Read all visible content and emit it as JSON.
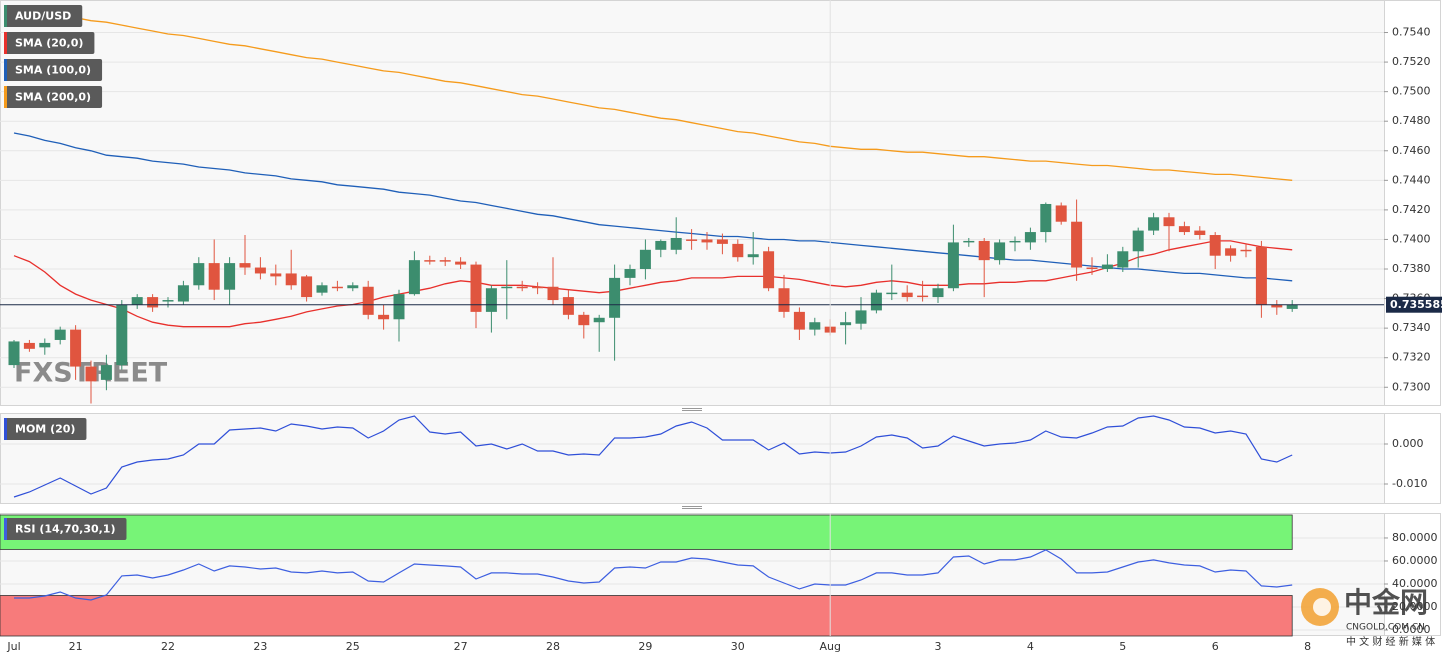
{
  "chart_data": [
    {
      "type": "candlestick",
      "title": "AUD/USD",
      "open": [
        0.7315,
        0.733,
        0.7327,
        0.7332,
        0.7339,
        0.7314,
        0.7305,
        0.7315,
        0.7356,
        0.7361,
        0.7358,
        0.7358,
        0.7369,
        0.7384,
        0.7366,
        0.7384,
        0.7381,
        0.7377,
        0.7377,
        0.7375,
        0.7364,
        0.7368,
        0.7367,
        0.7368,
        0.7349,
        0.7346,
        0.7363,
        0.7386,
        0.7386,
        0.7385,
        0.7383,
        0.7351,
        0.7367,
        0.7368,
        0.7368,
        0.7368,
        0.7361,
        0.7349,
        0.7344,
        0.7347,
        0.7374,
        0.738,
        0.7393,
        0.7393,
        0.74,
        0.74,
        0.74,
        0.7397,
        0.7388,
        0.7392,
        0.7367,
        0.7351,
        0.7339,
        0.7341,
        0.7342,
        0.7343,
        0.7352,
        0.7363,
        0.7364,
        0.7362,
        0.7361,
        0.7367,
        0.7398,
        0.7399,
        0.7386,
        0.7398,
        0.7398,
        0.7405,
        0.7423,
        0.7412,
        0.7381,
        0.738,
        0.7381,
        0.7392,
        0.7406,
        0.7415,
        0.7409,
        0.7406,
        0.7403,
        0.7394,
        0.7393,
        0.7395,
        0.7356,
        0.7353,
        null
      ],
      "high": [
        0.7332,
        0.7332,
        0.7333,
        0.7341,
        0.7342,
        0.7318,
        0.7322,
        0.7359,
        0.7363,
        0.7363,
        0.7361,
        0.7372,
        0.7388,
        0.74,
        0.7388,
        0.7403,
        0.7388,
        0.7383,
        0.7393,
        0.7376,
        0.7371,
        0.7372,
        0.7371,
        0.7372,
        0.7356,
        0.7366,
        0.7392,
        0.7389,
        0.7388,
        0.7388,
        0.7385,
        0.7369,
        0.7386,
        0.7372,
        0.7371,
        0.7388,
        0.7366,
        0.7351,
        0.7349,
        0.7383,
        0.7383,
        0.74,
        0.74,
        0.7415,
        0.7407,
        0.7405,
        0.7404,
        0.74,
        0.7405,
        0.7395,
        0.7376,
        0.7354,
        0.7347,
        0.7346,
        0.7351,
        0.7361,
        0.7366,
        0.7383,
        0.7369,
        0.7372,
        0.737,
        0.741,
        0.7401,
        0.7401,
        0.74,
        0.7402,
        0.7408,
        0.7425,
        0.7425,
        0.7427,
        0.7388,
        0.739,
        0.7395,
        0.7408,
        0.7418,
        0.7418,
        0.7412,
        0.7409,
        0.7405,
        0.7396,
        0.7397,
        0.7399,
        0.7359,
        0.7359,
        null
      ],
      "low": [
        0.7313,
        0.7324,
        0.7322,
        0.7329,
        0.7305,
        0.7289,
        0.7298,
        0.7312,
        0.7353,
        0.7351,
        0.7354,
        0.7356,
        0.7366,
        0.7359,
        0.7356,
        0.7376,
        0.7373,
        0.7369,
        0.7366,
        0.7358,
        0.7362,
        0.7365,
        0.7365,
        0.7346,
        0.7339,
        0.7331,
        0.7362,
        0.7383,
        0.7382,
        0.738,
        0.734,
        0.7337,
        0.7346,
        0.7365,
        0.7363,
        0.7356,
        0.7346,
        0.7333,
        0.7324,
        0.7318,
        0.7369,
        0.7373,
        0.7388,
        0.739,
        0.7393,
        0.7393,
        0.739,
        0.7385,
        0.7383,
        0.7365,
        0.7347,
        0.7332,
        0.7335,
        0.7335,
        0.7329,
        0.7339,
        0.735,
        0.7359,
        0.7358,
        0.7358,
        0.7357,
        0.7365,
        0.7395,
        0.7361,
        0.7383,
        0.7392,
        0.7393,
        0.7398,
        0.741,
        0.7372,
        0.7376,
        0.7378,
        0.7378,
        0.7381,
        0.7403,
        0.7392,
        0.7403,
        0.74,
        0.738,
        0.7385,
        0.7388,
        0.7347,
        0.7349,
        0.7351,
        null
      ],
      "close": [
        0.7331,
        0.7326,
        0.733,
        0.7339,
        0.7314,
        0.7304,
        0.7315,
        0.7356,
        0.7361,
        0.7354,
        0.7359,
        0.7369,
        0.7384,
        0.7366,
        0.7384,
        0.7381,
        0.7377,
        0.7375,
        0.7369,
        0.7361,
        0.7369,
        0.7367,
        0.7369,
        0.7349,
        0.7346,
        0.7363,
        0.7386,
        0.7385,
        0.7385,
        0.7383,
        0.7351,
        0.7367,
        0.7368,
        0.7367,
        0.7367,
        0.7359,
        0.7349,
        0.7342,
        0.7347,
        0.7374,
        0.738,
        0.7393,
        0.7399,
        0.7401,
        0.7399,
        0.7398,
        0.7397,
        0.7388,
        0.739,
        0.7367,
        0.7351,
        0.7339,
        0.7344,
        0.7337,
        0.7344,
        0.7352,
        0.7364,
        0.7364,
        0.7361,
        0.7361,
        0.7367,
        0.7398,
        0.7399,
        0.7386,
        0.7398,
        0.7399,
        0.7405,
        0.7424,
        0.7412,
        0.7381,
        0.738,
        0.7383,
        0.7392,
        0.7406,
        0.7415,
        0.7409,
        0.7405,
        0.7403,
        0.7389,
        0.7389,
        0.7392,
        0.7356,
        0.7354,
        0.735585,
        null
      ],
      "up_color": "#3c8d6e",
      "down_color": "#e0553f",
      "series": [
        {
          "name": "SMA (20,0)",
          "color": "#e8302c",
          "values": [
            0.7389,
            0.7385,
            0.7378,
            0.7369,
            0.7363,
            0.7359,
            0.7356,
            0.7353,
            0.7348,
            0.7344,
            0.7342,
            0.7341,
            0.7341,
            0.7341,
            0.7341,
            0.7343,
            0.7344,
            0.7346,
            0.7348,
            0.7351,
            0.7353,
            0.7355,
            0.7356,
            0.7358,
            0.7361,
            0.7363,
            0.7365,
            0.7367,
            0.737,
            0.7372,
            0.7371,
            0.7369,
            0.7369,
            0.7369,
            0.7368,
            0.7367,
            0.7366,
            0.7365,
            0.7364,
            0.7365,
            0.7367,
            0.7369,
            0.7371,
            0.7372,
            0.7374,
            0.7374,
            0.7374,
            0.7375,
            0.7375,
            0.7375,
            0.7374,
            0.7373,
            0.7371,
            0.7369,
            0.7368,
            0.7369,
            0.7371,
            0.7372,
            0.7371,
            0.7369,
            0.7369,
            0.7369,
            0.737,
            0.737,
            0.7371,
            0.7371,
            0.7372,
            0.7372,
            0.7374,
            0.7376,
            0.7378,
            0.7381,
            0.7384,
            0.7388,
            0.739,
            0.7393,
            0.7395,
            0.7397,
            0.7399,
            0.7399,
            0.7397,
            0.7395,
            0.7394,
            0.7393,
            null
          ]
        },
        {
          "name": "SMA (100,0)",
          "color": "#1f5fb8",
          "values": [
            0.7472,
            0.747,
            0.7467,
            0.7465,
            0.7462,
            0.746,
            0.7457,
            0.7456,
            0.7455,
            0.7453,
            0.7452,
            0.7451,
            0.7449,
            0.7448,
            0.7447,
            0.7445,
            0.7444,
            0.7443,
            0.7441,
            0.744,
            0.7439,
            0.7437,
            0.7436,
            0.7435,
            0.7434,
            0.7432,
            0.7431,
            0.743,
            0.7428,
            0.7426,
            0.7425,
            0.7423,
            0.7421,
            0.7419,
            0.7417,
            0.7416,
            0.7414,
            0.7412,
            0.741,
            0.7409,
            0.7408,
            0.7407,
            0.7406,
            0.7405,
            0.7404,
            0.7403,
            0.7402,
            0.7402,
            0.7401,
            0.74,
            0.74,
            0.7399,
            0.7399,
            0.7398,
            0.7397,
            0.7396,
            0.7395,
            0.7394,
            0.7393,
            0.7392,
            0.7391,
            0.739,
            0.7389,
            0.7388,
            0.7387,
            0.7386,
            0.7386,
            0.7385,
            0.7384,
            0.7383,
            0.7382,
            0.7381,
            0.738,
            0.738,
            0.7379,
            0.7378,
            0.7377,
            0.7377,
            0.7376,
            0.7375,
            0.7374,
            0.7374,
            0.7373,
            0.7372,
            null
          ]
        },
        {
          "name": "SMA (200,0)",
          "color": "#f59b1c",
          "values": [
            0.7557,
            0.7556,
            0.7554,
            0.7552,
            0.755,
            0.7548,
            0.7547,
            0.7545,
            0.7543,
            0.7541,
            0.7539,
            0.7538,
            0.7536,
            0.7534,
            0.7532,
            0.7531,
            0.7529,
            0.7527,
            0.7525,
            0.7523,
            0.7522,
            0.752,
            0.7518,
            0.7516,
            0.7514,
            0.7513,
            0.7511,
            0.7509,
            0.7507,
            0.7506,
            0.7504,
            0.7502,
            0.75,
            0.7498,
            0.7497,
            0.7495,
            0.7493,
            0.7491,
            0.7489,
            0.7488,
            0.7486,
            0.7484,
            0.7482,
            0.7481,
            0.7479,
            0.7477,
            0.7475,
            0.7473,
            0.7472,
            0.747,
            0.7468,
            0.7466,
            0.7465,
            0.7463,
            0.7462,
            0.7461,
            0.7461,
            0.746,
            0.7459,
            0.7459,
            0.7458,
            0.7457,
            0.7456,
            0.7456,
            0.7455,
            0.7454,
            0.7453,
            0.7453,
            0.7452,
            0.7451,
            0.745,
            0.745,
            0.7449,
            0.7448,
            0.7447,
            0.7447,
            0.7446,
            0.7445,
            0.7444,
            0.7444,
            0.7443,
            0.7442,
            0.7441,
            0.744,
            null
          ]
        }
      ],
      "ylim": [
        0.7288,
        0.7562
      ],
      "yticks": [
        {
          "value": 0.73,
          "label": "0.7300"
        },
        {
          "value": 0.732,
          "label": "0.7320"
        },
        {
          "value": 0.734,
          "label": "0.7340"
        },
        {
          "value": 0.736,
          "label": "0.7360"
        },
        {
          "value": 0.738,
          "label": "0.7380"
        },
        {
          "value": 0.74,
          "label": "0.7400"
        },
        {
          "value": 0.742,
          "label": "0.7420"
        },
        {
          "value": 0.744,
          "label": "0.7440"
        },
        {
          "value": 0.746,
          "label": "0.7460"
        },
        {
          "value": 0.748,
          "label": "0.7480"
        },
        {
          "value": 0.75,
          "label": "0.7500"
        },
        {
          "value": 0.752,
          "label": "0.7520"
        },
        {
          "value": 0.754,
          "label": "0.7540"
        }
      ],
      "grid": true,
      "last_price": 0.735585,
      "last_price_color": "#1b2a47",
      "watermark": "FXSTREET"
    },
    {
      "type": "line",
      "title": "MOM (20)",
      "color": "#2f4fd8",
      "values": [
        -0.01325,
        -0.012,
        -0.01025,
        -0.0085,
        -0.0105,
        -0.0125,
        -0.011,
        -0.00575,
        -0.0045,
        -0.004,
        -0.00375,
        -0.00275,
        0,
        0,
        0.0035,
        0.00375,
        0.004,
        0.00325,
        0.005,
        0.0045,
        0.00375,
        0.00425,
        0.004,
        0.0015,
        0.00325,
        0.006,
        0.007,
        0.003,
        0.0025,
        0.003,
        -0.0005,
        0,
        -0.00125,
        0,
        -0.00175,
        -0.00175,
        -0.00275,
        -0.0025,
        -0.00275,
        0.0015,
        0.0015,
        0.00175,
        0.0025,
        0.0045,
        0.0055,
        0.004,
        0.001,
        0.001,
        0.001,
        -0.0015,
        0.00025,
        -0.0025,
        -0.002,
        -0.00225,
        -0.002,
        -0.0005,
        0.00175,
        0.00225,
        0.0015,
        -0.001,
        -0.0005,
        0.002,
        0.00075,
        -0.0005,
        0,
        0.00025,
        0.001,
        0.00325,
        0.00175,
        0.0015,
        0.00275,
        0.00425,
        0.0045,
        0.0065,
        0.007,
        0.006,
        0.00425,
        0.004,
        0.00275,
        0.00325,
        0.0025,
        -0.00375,
        -0.0045,
        -0.00275,
        null
      ],
      "ylim": [
        -0.01475,
        0.00775
      ],
      "yticks": [
        {
          "value": 0,
          "label": "0.000"
        },
        {
          "value": -0.01,
          "label": "-0.010"
        }
      ],
      "grid": true
    },
    {
      "type": "line",
      "title": "RSI (14,70,30,1)",
      "color": "#3d5fe0",
      "values": [
        27.8,
        27.8,
        29.6,
        33.0,
        27.8,
        26.1,
        30.4,
        47.0,
        47.8,
        45.2,
        47.8,
        52.2,
        57.4,
        51.3,
        55.7,
        54.8,
        53.0,
        53.9,
        50.4,
        49.6,
        51.3,
        49.6,
        50.4,
        42.6,
        41.7,
        49.6,
        57.4,
        56.5,
        55.7,
        54.8,
        44.3,
        49.6,
        49.6,
        48.7,
        48.7,
        46.1,
        42.6,
        40.9,
        41.7,
        53.9,
        54.8,
        53.9,
        59.1,
        59.1,
        62.6,
        61.7,
        59.1,
        56.5,
        55.7,
        46.1,
        40.9,
        35.7,
        40.0,
        39.1,
        39.1,
        43.5,
        49.6,
        49.6,
        47.8,
        47.8,
        49.6,
        63.5,
        64.3,
        57.4,
        60.9,
        60.9,
        63.5,
        69.6,
        61.7,
        49.6,
        49.6,
        50.4,
        54.8,
        59.1,
        60.9,
        58.3,
        56.5,
        55.7,
        50.4,
        52.2,
        51.3,
        38.3,
        37.4,
        39.1,
        null
      ],
      "ylim": [
        -5.2,
        101.7
      ],
      "yticks": [
        {
          "value": 80,
          "label": "80.0000"
        },
        {
          "value": 60,
          "label": "60.0000"
        },
        {
          "value": 40,
          "label": "40.0000"
        },
        {
          "value": 20,
          "label": "20.0000"
        },
        {
          "value": 0,
          "label": "0.0000"
        }
      ],
      "grid": true,
      "upper_band": 70,
      "lower_band": 30,
      "upper_color": "#77f477",
      "lower_color": "#f77b7b",
      "categories": [
        "Jul",
        null,
        null,
        null,
        "21",
        null,
        null,
        null,
        null,
        null,
        "22",
        null,
        null,
        null,
        null,
        null,
        "23",
        null,
        null,
        null,
        null,
        null,
        "25",
        null,
        null,
        null,
        null,
        null,
        null,
        "27",
        null,
        null,
        null,
        null,
        null,
        "28",
        null,
        null,
        null,
        null,
        null,
        "29",
        null,
        null,
        null,
        null,
        null,
        "30",
        null,
        null,
        null,
        null,
        null,
        "Aug",
        null,
        null,
        null,
        null,
        null,
        null,
        "3",
        null,
        null,
        null,
        null,
        null,
        "4",
        null,
        null,
        null,
        null,
        null,
        "5",
        null,
        null,
        null,
        null,
        null,
        "6",
        null,
        null,
        null,
        null,
        null,
        "8"
      ]
    }
  ],
  "logo": {
    "name": "中金网",
    "domain": "CNGOLD.COM.CN",
    "tagline": "中 文 财 经 新 媒 体"
  }
}
